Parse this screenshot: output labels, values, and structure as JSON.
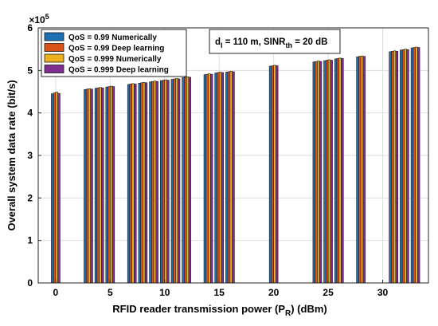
{
  "chart_data": {
    "type": "bar",
    "xlabel": "RFID reader transmission power (P",
    "xlabel_sub": "R",
    "xlabel_tail": ") (dBm)",
    "ylabel": "Overall system data rate (bit/s)",
    "y_exponent_base": "×10",
    "y_exponent": "5",
    "ylim": [
      0,
      600000
    ],
    "y_ticks": [
      "0",
      "1",
      "2",
      "3",
      "4",
      "5",
      "6"
    ],
    "x_ticks": [
      "0",
      "5",
      "10",
      "15",
      "20",
      "25",
      "30"
    ],
    "x_tick_values": [
      0,
      5,
      10,
      15,
      20,
      25,
      30
    ],
    "x": [
      0,
      3,
      4,
      5,
      7,
      8,
      9,
      10,
      11,
      12,
      14,
      15,
      16,
      20,
      24,
      25,
      26,
      28,
      31,
      32,
      33
    ],
    "grid": true,
    "legend_position": "top-left",
    "series": [
      {
        "name": "QoS = 0.99 Numerically",
        "color": "#1f6fb4",
        "values": [
          445000,
          455000,
          458000,
          461000,
          467000,
          470000,
          473000,
          476000,
          479000,
          483000,
          490000,
          494000,
          496000,
          510000,
          520000,
          523000,
          527000,
          532000,
          544000,
          548000,
          553000
        ]
      },
      {
        "name": "QoS = 0.99 Deep learning",
        "color": "#d95319",
        "values": [
          447000,
          456000,
          459000,
          462000,
          468000,
          471000,
          474000,
          477000,
          480000,
          484000,
          491000,
          495000,
          497000,
          511000,
          521000,
          524000,
          528000,
          533000,
          545000,
          549000,
          554000
        ]
      },
      {
        "name": "QoS = 0.999 Numerically",
        "color": "#edb120",
        "values": [
          449000,
          457000,
          460000,
          463000,
          469000,
          472000,
          475000,
          478000,
          481000,
          485000,
          492000,
          496000,
          498000,
          512000,
          522000,
          525000,
          529000,
          534000,
          546000,
          550000,
          555000
        ]
      },
      {
        "name": "QoS = 0.999 Deep learning",
        "color": "#7e2f8e",
        "values": [
          446000,
          456000,
          459000,
          462000,
          468000,
          471000,
          474000,
          477000,
          480000,
          484000,
          491000,
          495000,
          497000,
          511000,
          521000,
          524000,
          528000,
          533000,
          545000,
          549000,
          554000
        ]
      }
    ],
    "annotation": {
      "part1": "d",
      "sub1": "l",
      "part2": " = 110 m, SINR",
      "sub2": "th",
      "part3": " = 20 dB"
    }
  }
}
